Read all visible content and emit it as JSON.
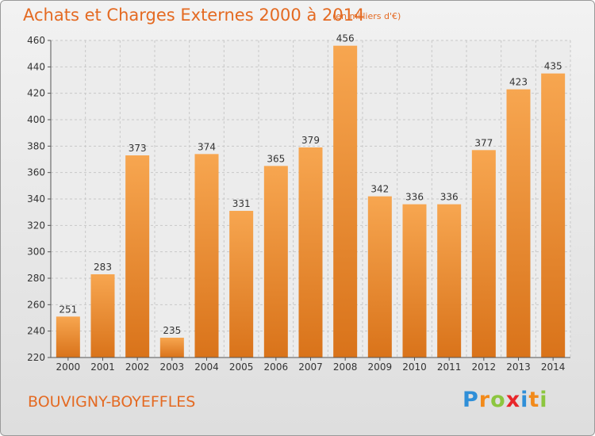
{
  "header": {
    "title": "Achats et Charges Externes 2000 à 2014",
    "subtitle": "(en milliers d'€)"
  },
  "footer": {
    "place": "BOUVIGNY-BOYEFFLES",
    "logo_letters": [
      "P",
      "r",
      "o",
      "x",
      "i",
      "t",
      "i"
    ],
    "logo_colors": [
      "#2f8fd8",
      "#f28a1a",
      "#8cc63f",
      "#e8262a",
      "#2f8fd8",
      "#f28a1a",
      "#8cc63f"
    ]
  },
  "colors": {
    "bar_light": "#f7a650",
    "bar_dark": "#d9731a",
    "accent": "#e46a22",
    "grid": "#c8c8c8"
  },
  "chart_data": {
    "type": "bar",
    "categories": [
      "2000",
      "2001",
      "2002",
      "2003",
      "2004",
      "2005",
      "2006",
      "2007",
      "2008",
      "2009",
      "2010",
      "2011",
      "2012",
      "2013",
      "2014"
    ],
    "values": [
      251,
      283,
      373,
      235,
      374,
      331,
      365,
      379,
      456,
      342,
      336,
      336,
      377,
      423,
      435
    ],
    "ylim": [
      220,
      460
    ],
    "yticks": [
      220,
      240,
      260,
      280,
      300,
      320,
      340,
      360,
      380,
      400,
      420,
      440,
      460
    ],
    "grid": true,
    "xlabel": "",
    "ylabel": ""
  }
}
